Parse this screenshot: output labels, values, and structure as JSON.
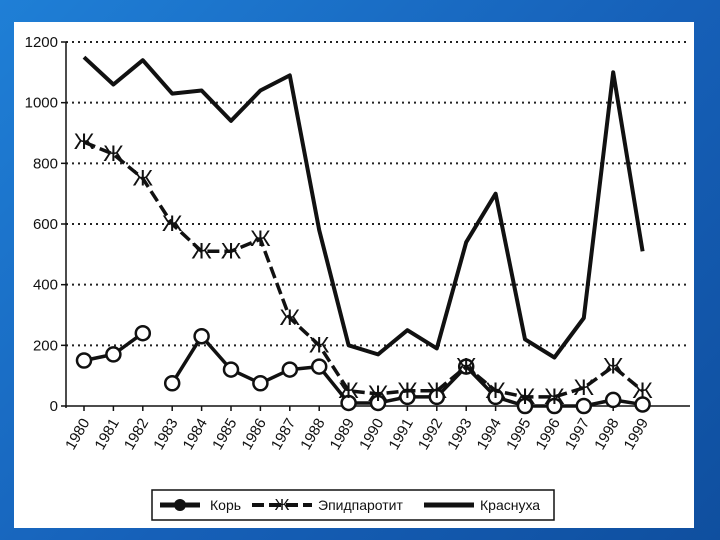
{
  "chart_data": {
    "type": "line",
    "x": [
      "1980",
      "1981",
      "1982",
      "1983",
      "1984",
      "1985",
      "1986",
      "1987",
      "1988",
      "1989",
      "1990",
      "1991",
      "1992",
      "1993",
      "1994",
      "1995",
      "1996",
      "1997",
      "1998",
      "1999"
    ],
    "ylim": [
      0,
      1200
    ],
    "yticks": [
      0,
      200,
      400,
      600,
      800,
      1000,
      1200
    ],
    "grid": "horizontal-dotted",
    "legend_position": "bottom",
    "series": [
      {
        "name": "Корь",
        "marker": "circle",
        "color": "#111111",
        "values": [
          150,
          170,
          240,
          75,
          230,
          120,
          75,
          120,
          130,
          10,
          10,
          30,
          30,
          130,
          30,
          0,
          0,
          0,
          20,
          5
        ],
        "gaps_after": [
          2
        ]
      },
      {
        "name": "Эпидпаротит",
        "marker": "zhe",
        "color": "#111111",
        "values": [
          870,
          830,
          750,
          600,
          510,
          510,
          550,
          290,
          200,
          50,
          40,
          50,
          50,
          130,
          50,
          30,
          30,
          60,
          130,
          50
        ]
      },
      {
        "name": "Краснуха",
        "marker": "none",
        "color": "#111111",
        "values": [
          1150,
          1060,
          1140,
          1030,
          1040,
          940,
          1040,
          1090,
          580,
          200,
          170,
          250,
          190,
          540,
          700,
          220,
          160,
          290,
          1100,
          510
        ]
      }
    ]
  },
  "legend": {
    "items": [
      {
        "label": "Корь"
      },
      {
        "label": "Эпидпаротит"
      },
      {
        "label": "Краснуха"
      }
    ]
  }
}
